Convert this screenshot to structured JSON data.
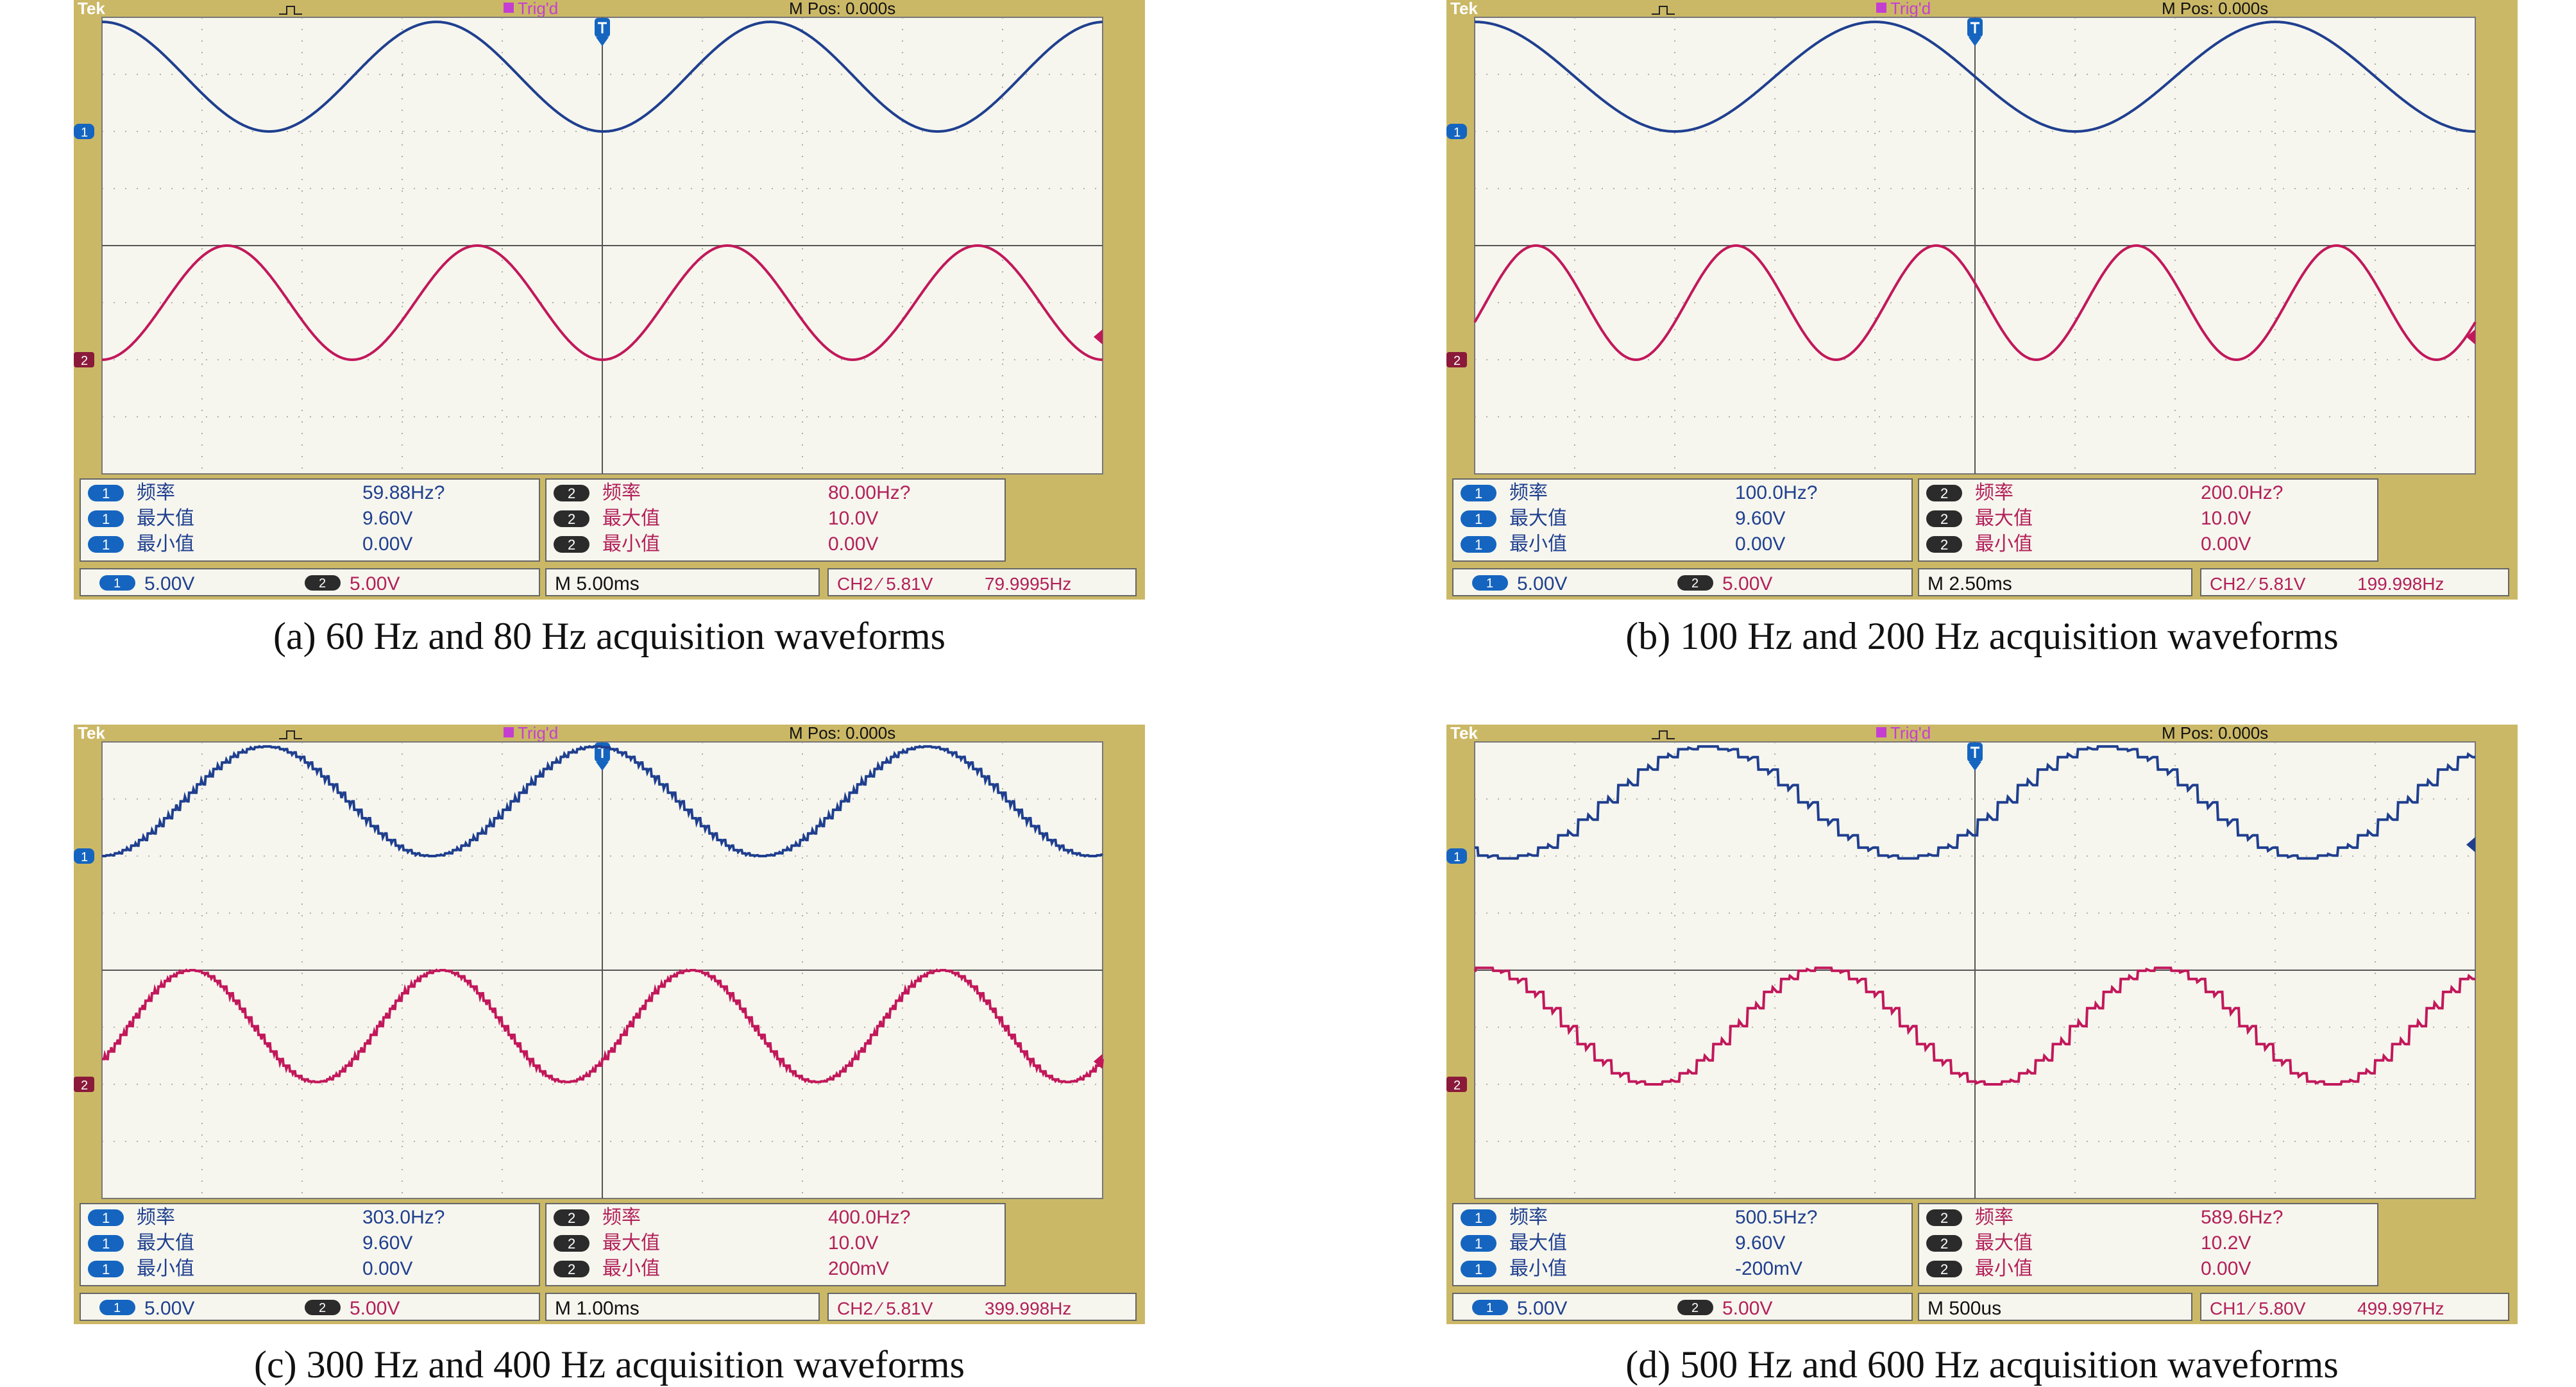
{
  "panels": [
    {
      "caption": "(a) 60 Hz and 80 Hz acquisition waveforms",
      "header": {
        "brand": "Tek",
        "trigger_status": "Trig'd",
        "mpos": "M Pos: 0.000s"
      },
      "ch1_box": {
        "channel": "1",
        "rows": [
          {
            "label": "频率",
            "value": "59.88Hz?"
          },
          {
            "label": "最大值",
            "value": "9.60V"
          },
          {
            "label": "最小值",
            "value": "0.00V"
          }
        ]
      },
      "ch2_box": {
        "channel": "2",
        "rows": [
          {
            "label": "频率",
            "value": "80.00Hz?"
          },
          {
            "label": "最大值",
            "value": "10.0V"
          },
          {
            "label": "最小值",
            "value": "0.00V"
          }
        ]
      },
      "status": {
        "ch1_scale": "5.00V",
        "ch2_scale": "5.00V",
        "timebase": "M 5.00ms",
        "trigger": "CH2 ⁄ 5.81V",
        "trigger_freq": "79.9995Hz"
      }
    },
    {
      "caption": "(b) 100 Hz and 200 Hz acquisition waveforms",
      "header": {
        "brand": "Tek",
        "trigger_status": "Trig'd",
        "mpos": "M Pos: 0.000s"
      },
      "ch1_box": {
        "channel": "1",
        "rows": [
          {
            "label": "频率",
            "value": "100.0Hz?"
          },
          {
            "label": "最大值",
            "value": "9.60V"
          },
          {
            "label": "最小值",
            "value": "0.00V"
          }
        ]
      },
      "ch2_box": {
        "channel": "2",
        "rows": [
          {
            "label": "频率",
            "value": "200.0Hz?"
          },
          {
            "label": "最大值",
            "value": "10.0V"
          },
          {
            "label": "最小值",
            "value": "0.00V"
          }
        ]
      },
      "status": {
        "ch1_scale": "5.00V",
        "ch2_scale": "5.00V",
        "timebase": "M 2.50ms",
        "trigger": "CH2 ⁄ 5.81V",
        "trigger_freq": "199.998Hz"
      }
    },
    {
      "caption": "(c) 300 Hz and 400 Hz acquisition waveforms",
      "header": {
        "brand": "Tek",
        "trigger_status": "Trig'd",
        "mpos": "M Pos: 0.000s"
      },
      "ch1_box": {
        "channel": "1",
        "rows": [
          {
            "label": "频率",
            "value": "303.0Hz?"
          },
          {
            "label": "最大值",
            "value": "9.60V"
          },
          {
            "label": "最小值",
            "value": "0.00V"
          }
        ]
      },
      "ch2_box": {
        "channel": "2",
        "rows": [
          {
            "label": "频率",
            "value": "400.0Hz?"
          },
          {
            "label": "最大值",
            "value": "10.0V"
          },
          {
            "label": "最小值",
            "value": "200mV"
          }
        ]
      },
      "status": {
        "ch1_scale": "5.00V",
        "ch2_scale": "5.00V",
        "timebase": "M 1.00ms",
        "trigger": "CH2 ⁄ 5.81V",
        "trigger_freq": "399.998Hz"
      }
    },
    {
      "caption": "(d) 500 Hz and 600 Hz acquisition waveforms",
      "header": {
        "brand": "Tek",
        "trigger_status": "Trig'd",
        "mpos": "M Pos: 0.000s"
      },
      "ch1_box": {
        "channel": "1",
        "rows": [
          {
            "label": "频率",
            "value": "500.5Hz?"
          },
          {
            "label": "最大值",
            "value": "9.60V"
          },
          {
            "label": "最小值",
            "value": "-200mV"
          }
        ]
      },
      "ch2_box": {
        "channel": "2",
        "rows": [
          {
            "label": "频率",
            "value": "589.6Hz?"
          },
          {
            "label": "最大值",
            "value": "10.2V"
          },
          {
            "label": "最小值",
            "value": "0.00V"
          }
        ]
      },
      "status": {
        "ch1_scale": "5.00V",
        "ch2_scale": "5.00V",
        "timebase": "M 500us",
        "trigger": "CH1 ⁄ 5.80V",
        "trigger_freq": "499.997Hz"
      }
    }
  ],
  "chart_data": [
    {
      "type": "line",
      "title": "(a) 60 Hz and 80 Hz acquisition waveforms",
      "xlabel": "",
      "ylabel": "",
      "x_unit": "ms",
      "x_range": [
        -25,
        25
      ],
      "time_per_div_ms": 5.0,
      "volts_per_div": 5.0,
      "grid": true,
      "series": [
        {
          "channel": "CH1",
          "color": "#1f3f8f",
          "waveform": "sine",
          "frequency_hz": 59.88,
          "max_v": 9.6,
          "min_v": 0.0,
          "start_phase_deg": 90,
          "step_artifacts": 0
        },
        {
          "channel": "CH2",
          "color": "#c2185b",
          "waveform": "sine",
          "frequency_hz": 80.0,
          "max_v": 10.0,
          "min_v": 0.0,
          "start_phase_deg": 270,
          "step_artifacts": 0
        }
      ]
    },
    {
      "type": "line",
      "title": "(b) 100 Hz and 200 Hz acquisition waveforms",
      "xlabel": "",
      "ylabel": "",
      "x_unit": "ms",
      "x_range": [
        -12.5,
        12.5
      ],
      "time_per_div_ms": 2.5,
      "volts_per_div": 5.0,
      "grid": true,
      "series": [
        {
          "channel": "CH1",
          "color": "#1f3f8f",
          "waveform": "sine",
          "frequency_hz": 100.0,
          "max_v": 9.6,
          "min_v": 0.0,
          "start_phase_deg": 90,
          "step_artifacts": 0
        },
        {
          "channel": "CH2",
          "color": "#c2185b",
          "waveform": "sine",
          "frequency_hz": 200.0,
          "max_v": 10.0,
          "min_v": 0.0,
          "start_phase_deg": 340,
          "step_artifacts": 0
        }
      ]
    },
    {
      "type": "line",
      "title": "(c) 300 Hz and 400 Hz acquisition waveforms",
      "xlabel": "",
      "ylabel": "",
      "x_unit": "ms",
      "x_range": [
        -5,
        5
      ],
      "time_per_div_ms": 1.0,
      "volts_per_div": 5.0,
      "grid": true,
      "series": [
        {
          "channel": "CH1",
          "color": "#1f3f8f",
          "waveform": "stepped-sine",
          "frequency_hz": 303.0,
          "max_v": 9.6,
          "min_v": 0.0,
          "start_phase_deg": 270,
          "step_artifacts": 40
        },
        {
          "channel": "CH2",
          "color": "#c2185b",
          "waveform": "stepped-sine",
          "frequency_hz": 400.0,
          "max_v": 10.0,
          "min_v": 0.2,
          "start_phase_deg": 320,
          "step_artifacts": 40
        }
      ]
    },
    {
      "type": "line",
      "title": "(d) 500 Hz and 600 Hz acquisition waveforms",
      "xlabel": "",
      "ylabel": "",
      "x_unit": "ms",
      "x_range": [
        -2.5,
        2.5
      ],
      "time_per_div_ms": 0.5,
      "volts_per_div": 5.0,
      "grid": true,
      "series": [
        {
          "channel": "CH1",
          "color": "#1f3f8f",
          "waveform": "stepped-sine",
          "frequency_hz": 500.5,
          "max_v": 9.6,
          "min_v": -0.2,
          "start_phase_deg": 240,
          "step_artifacts": 20
        },
        {
          "channel": "CH2",
          "color": "#c2185b",
          "waveform": "stepped-sine",
          "frequency_hz": 589.6,
          "max_v": 10.2,
          "min_v": 0.0,
          "start_phase_deg": 80,
          "step_artifacts": 20
        }
      ]
    }
  ]
}
